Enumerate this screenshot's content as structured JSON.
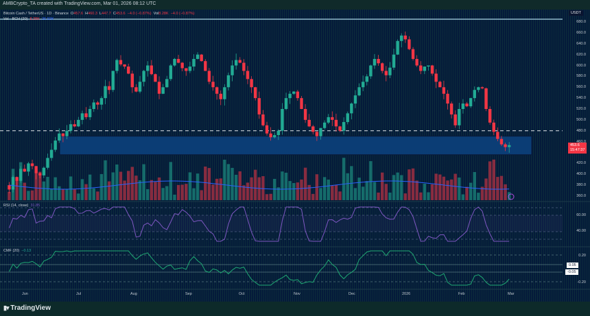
{
  "header": {
    "attribution": "AMBCrypto_TA created with TradingView.com, Mar 01, 2026 08:12 UTC"
  },
  "main_legend": {
    "symbol": "Bitcoin Cash / TetherUS · 1D · Binance",
    "open_label": "O",
    "open": "457.6",
    "high_label": "H",
    "high": "460.3",
    "low_label": "L",
    "low": "447.7",
    "close_label": "C",
    "close": "453.6",
    "change": "−4.0 (−0.87%)",
    "vol_label": "Vol",
    "vol": "8.28K",
    "vol_change": "−4.0 (−0.87%)"
  },
  "volume_legend": {
    "label": "Vol · BCH (20)",
    "value_red": "8.28K",
    "value_blue": "26.92K"
  },
  "rsi_legend": {
    "label": "RSI (14, close)",
    "value": "31.85"
  },
  "cmf_legend": {
    "label": "CMF (20)",
    "value": "−0.13"
  },
  "price_axis": {
    "currency": "USDT",
    "ticks": [
      "680.0",
      "660.0",
      "640.0",
      "620.0",
      "600.0",
      "580.0",
      "560.0",
      "540.0",
      "520.0",
      "500.0",
      "480.0",
      "460.0",
      "440.0",
      "420.0",
      "400.0",
      "380.0",
      "360.0"
    ],
    "current_price": "453.6",
    "countdown": "15:47:37"
  },
  "rsi_axis": {
    "ticks": [
      "60.00",
      "40.00"
    ]
  },
  "cmf_axis": {
    "ticks": [
      "0.20",
      "-0.20"
    ],
    "tag_upper": "0.05",
    "tag_lower": "-0.05"
  },
  "time_axis": {
    "labels": [
      "Jun",
      "Jul",
      "Aug",
      "Sep",
      "Oct",
      "Nov",
      "Dec",
      "2026",
      "Feb",
      "Mar"
    ]
  },
  "footer": {
    "brand": "TradingView"
  },
  "colors": {
    "up": "#22ab94",
    "down": "#f23645",
    "zone": "#0b3d75",
    "zone_border": "#0a1a3a",
    "rsi": "#7e57c2",
    "cmf": "#1fa873",
    "vol_ma": "#2962ff",
    "price_tag": "#f23645"
  },
  "chart_data": {
    "type": "candlestick",
    "title": "Bitcoin Cash / TetherUS · 1D · Binance",
    "xlabel": "",
    "ylabel": "USDT",
    "ylim": [
      350,
      690
    ],
    "x_range": [
      "2025-05-20",
      "2026-03-01"
    ],
    "support_zone": [
      436,
      470
    ],
    "dashed_resistance": 480,
    "current_price": 453.6,
    "price_path": [
      380,
      372,
      395,
      388,
      410,
      405,
      420,
      415,
      402,
      398,
      412,
      430,
      445,
      462,
      475,
      470,
      480,
      492,
      488,
      500,
      512,
      505,
      520,
      532,
      528,
      540,
      562,
      555,
      590,
      610,
      602,
      598,
      585,
      560,
      552,
      570,
      590,
      600,
      584,
      570,
      548,
      560,
      575,
      600,
      612,
      605,
      595,
      590,
      598,
      612,
      620,
      608,
      590,
      570,
      560,
      548,
      538,
      560,
      582,
      600,
      610,
      605,
      590,
      575,
      560,
      540,
      510,
      490,
      475,
      468,
      472,
      480,
      520,
      540,
      548,
      552,
      540,
      520,
      500,
      488,
      478,
      470,
      485,
      495,
      505,
      500,
      488,
      480,
      496,
      512,
      530,
      545,
      560,
      570,
      580,
      600,
      612,
      604,
      590,
      582,
      596,
      620,
      645,
      655,
      648,
      630,
      612,
      600,
      590,
      598,
      600,
      585,
      570,
      560,
      548,
      530,
      510,
      490,
      520,
      530,
      525,
      540,
      555,
      560,
      558,
      520,
      495,
      478,
      465,
      455,
      450,
      453.6
    ],
    "volume_ma": "approx. 360-400 visual band",
    "rsi": {
      "ylim": [
        25,
        75
      ],
      "levels": [
        60,
        40
      ],
      "last": 31.85
    },
    "cmf": {
      "ylim": [
        -0.3,
        0.3
      ],
      "levels": [
        0.2,
        0.05,
        -0.05,
        -0.2
      ],
      "last": -0.13
    }
  }
}
